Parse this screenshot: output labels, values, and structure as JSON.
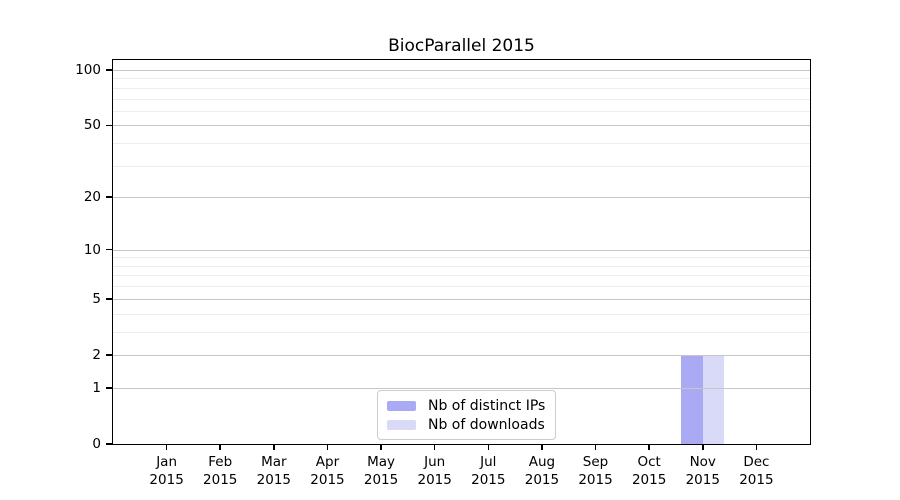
{
  "chart_data": {
    "type": "bar",
    "title": "BiocParallel 2015",
    "categories": [
      "Jan",
      "Feb",
      "Mar",
      "Apr",
      "May",
      "Jun",
      "Jul",
      "Aug",
      "Sep",
      "Oct",
      "Nov",
      "Dec"
    ],
    "category_year": "2015",
    "xlabel": "",
    "ylabel": "",
    "series": [
      {
        "name": "Nb of distinct IPs",
        "color": "#a9a9f4",
        "values": [
          0,
          0,
          0,
          0,
          0,
          0,
          0,
          0,
          0,
          0,
          2,
          0
        ]
      },
      {
        "name": "Nb of downloads",
        "color": "#d9d9f8",
        "values": [
          0,
          0,
          0,
          0,
          0,
          0,
          0,
          0,
          0,
          0,
          2,
          0
        ]
      }
    ],
    "yscale": "log1p",
    "ylim": [
      0,
      113
    ],
    "yticks": [
      0,
      1,
      2,
      5,
      10,
      20,
      50,
      100
    ],
    "yticks_minor": [
      3,
      4,
      6,
      7,
      8,
      9,
      30,
      40,
      60,
      70,
      80,
      90
    ],
    "grid": "horizontal-on",
    "legend_position": "inside-bottom-center",
    "colors": {
      "major_grid": "#c6c6c6",
      "minor_grid": "#ededed",
      "frame": "#000000",
      "background": "#ffffff"
    }
  },
  "legend": {
    "items": [
      {
        "label": "Nb of distinct IPs"
      },
      {
        "label": "Nb of downloads"
      }
    ]
  }
}
